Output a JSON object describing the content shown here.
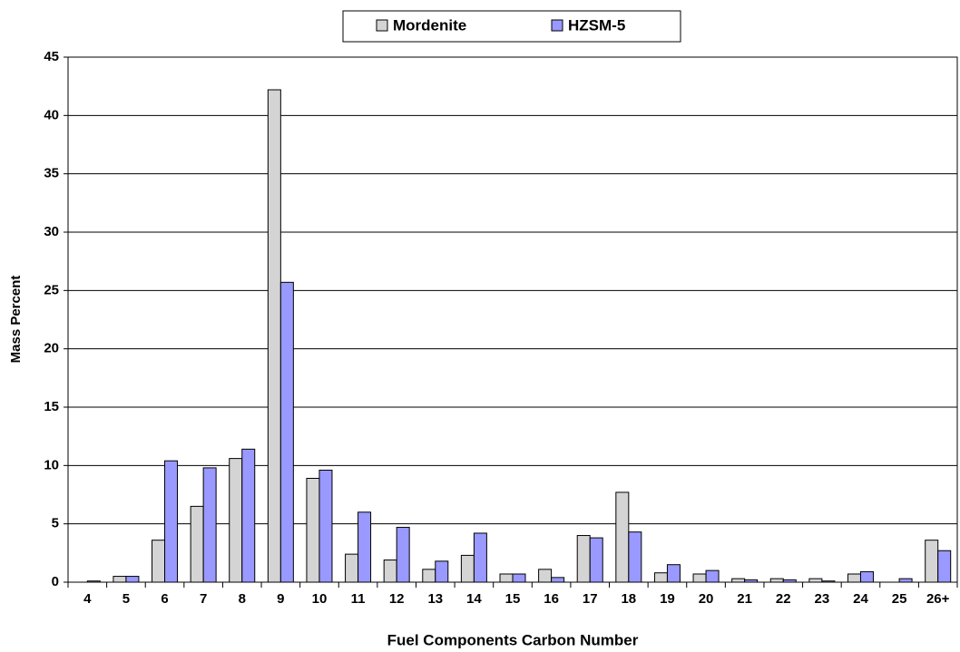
{
  "chart_data": {
    "type": "bar",
    "categories": [
      "4",
      "5",
      "6",
      "7",
      "8",
      "9",
      "10",
      "11",
      "12",
      "13",
      "14",
      "15",
      "16",
      "17",
      "18",
      "19",
      "20",
      "21",
      "22",
      "23",
      "24",
      "25",
      "26+"
    ],
    "series": [
      {
        "name": "Mordenite",
        "color": "#d4d4d4",
        "values": [
          0,
          0.5,
          3.6,
          6.5,
          10.6,
          42.2,
          8.9,
          2.4,
          1.9,
          1.1,
          2.3,
          0.7,
          1.1,
          4.0,
          7.7,
          0.8,
          0.7,
          0.3,
          0.3,
          0.3,
          0.7,
          0,
          3.6
        ]
      },
      {
        "name": "HZSM-5",
        "color": "#9999ff",
        "values": [
          0.1,
          0.5,
          10.4,
          9.8,
          11.4,
          25.7,
          9.6,
          6.0,
          4.7,
          1.8,
          4.2,
          0.7,
          0.4,
          3.8,
          4.3,
          1.5,
          1.0,
          0.2,
          0.2,
          0.1,
          0.9,
          0.3,
          2.7
        ]
      }
    ],
    "xlabel": "Fuel Components Carbon Number",
    "ylabel": "Mass Percent",
    "ylim": [
      0,
      45
    ],
    "yticks": [
      0,
      5,
      10,
      15,
      20,
      25,
      30,
      35,
      40,
      45
    ],
    "grid": true
  }
}
